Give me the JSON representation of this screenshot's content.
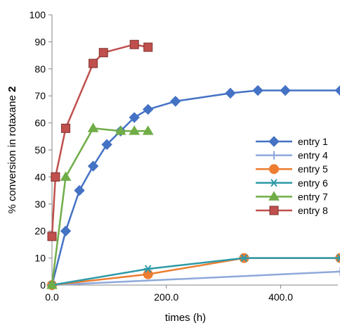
{
  "chart_data": {
    "type": "scatter",
    "xlabel": "times (h)",
    "ylabel_prefix": "% conversion in rotaxane ",
    "ylabel_bold": "2",
    "xlim": [
      0,
      500
    ],
    "ylim": [
      0,
      100
    ],
    "x_ticks": [
      0,
      200,
      400
    ],
    "x_tick_labels": [
      "0.0",
      "200.0",
      "400.0"
    ],
    "y_ticks": [
      0,
      10,
      20,
      30,
      40,
      50,
      60,
      70,
      80,
      90,
      100
    ],
    "y_tick_labels": [
      "0",
      "10",
      "20",
      "30",
      "40",
      "50",
      "60",
      "70",
      "80",
      "90",
      "100"
    ],
    "grid": false,
    "legend_position": "right",
    "series": [
      {
        "name": "entry 1",
        "color": "#4472C4",
        "marker": "diamond",
        "x": [
          0,
          24,
          48,
          72,
          96,
          120,
          144,
          168,
          216,
          312,
          360,
          408,
          504
        ],
        "y": [
          0,
          20,
          35,
          44,
          52,
          57,
          62,
          65,
          68,
          71,
          72,
          72,
          72
        ]
      },
      {
        "name": "entry 4",
        "color": "#8EA9DB",
        "marker": "plus",
        "x": [
          0,
          504
        ],
        "y": [
          0,
          5
        ]
      },
      {
        "name": "entry 5",
        "color": "#ED7D31",
        "marker": "circle",
        "x": [
          0,
          168,
          336,
          504
        ],
        "y": [
          0,
          4,
          10,
          10
        ]
      },
      {
        "name": "entry 6",
        "color": "#2E9AA8",
        "marker": "star",
        "x": [
          0,
          168,
          336,
          504
        ],
        "y": [
          0,
          6,
          10,
          10
        ]
      },
      {
        "name": "entry 7",
        "color": "#70AD47",
        "marker": "triangle",
        "x": [
          0,
          24,
          72,
          120,
          144,
          168
        ],
        "y": [
          0,
          40,
          58,
          57,
          57,
          57
        ]
      },
      {
        "name": "entry 8",
        "color": "#C0504D",
        "marker": "square",
        "x": [
          0,
          6,
          24,
          72,
          90,
          144,
          168
        ],
        "y": [
          18,
          40,
          58,
          82,
          86,
          89,
          88
        ]
      }
    ]
  }
}
